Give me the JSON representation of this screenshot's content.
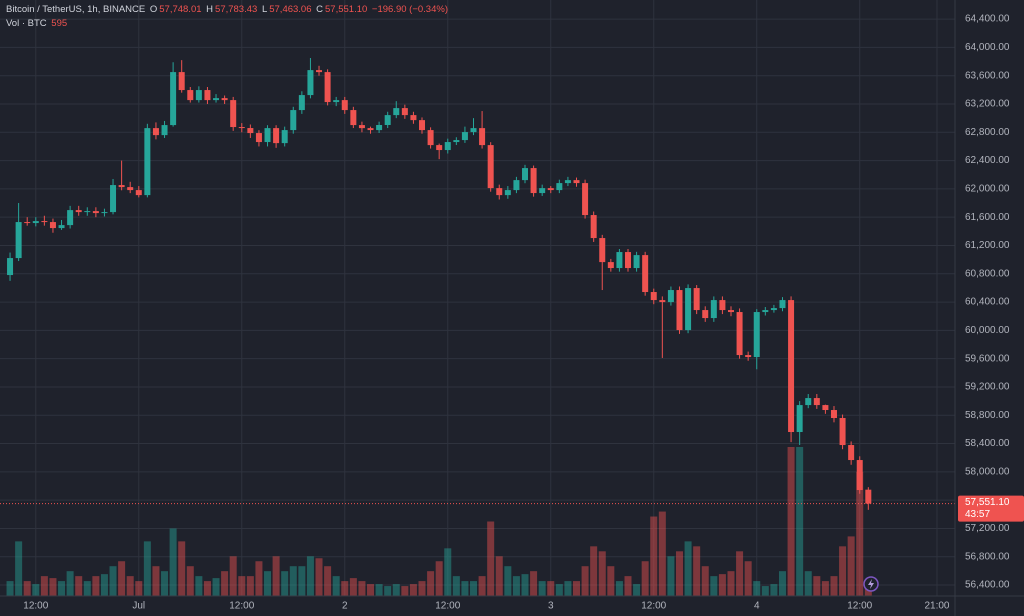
{
  "chart_data": {
    "type": "candlestick",
    "title": "Bitcoin / TetherUS, 1h, BINANCE",
    "ohlc_prefixes": [
      "O",
      "H",
      "L",
      "C"
    ],
    "ohlc_labels": [
      "57,748.01",
      "57,783.43",
      "57,463.06",
      "57,551.10"
    ],
    "change_label": "−196.90 (−0.34%)",
    "volume_title": "Vol · BTC",
    "volume_label": "595",
    "countdown": "43:57",
    "up_color": "#26a69a",
    "down_color": "#ef5350",
    "grid": true,
    "open": [
      60782,
      61022,
      61531,
      61517,
      61545,
      61531,
      61446,
      61488,
      61700,
      61672,
      61686,
      61658,
      61672,
      62054,
      62025,
      61983,
      61912,
      62859,
      62760,
      62902,
      63651,
      63397,
      63255,
      63397,
      63255,
      63283,
      63255,
      62874,
      62860,
      62789,
      62662,
      62859,
      62647,
      62831,
      63114,
      63326,
      63679,
      63651,
      63227,
      63255,
      63114,
      62902,
      62859,
      62831,
      62903,
      63043,
      63142,
      63043,
      62972,
      62831,
      62619,
      62549,
      62662,
      62690,
      62803,
      62859,
      62619,
      62011,
      61912,
      61983,
      62124,
      62294,
      61941,
      62011,
      61983,
      62082,
      62124,
      62082,
      61630,
      61305,
      60965,
      60881,
      61107,
      60881,
      61064,
      60542,
      60428,
      60400,
      60570,
      60004,
      60598,
      60287,
      60174,
      60428,
      60287,
      60259,
      59651,
      59623,
      60259,
      60287,
      60315,
      60428,
      58563,
      58944,
      59043,
      58944,
      58874,
      58761,
      58379,
      58167,
      57748.01
    ],
    "high": [
      61100,
      61800,
      61600,
      61600,
      61620,
      61580,
      61560,
      61760,
      61760,
      61740,
      61740,
      61720,
      62140,
      62400,
      62100,
      62040,
      62920,
      62940,
      62960,
      63790,
      63820,
      63440,
      63450,
      63440,
      63340,
      63320,
      63300,
      62930,
      62910,
      62830,
      62900,
      62900,
      62880,
      63160,
      63380,
      63850,
      63740,
      63690,
      63300,
      63300,
      63160,
      62950,
      62880,
      62950,
      63090,
      63240,
      63190,
      63090,
      63010,
      62870,
      62640,
      62710,
      62730,
      62880,
      63000,
      63100,
      62660,
      62060,
      62040,
      62170,
      62340,
      62330,
      62060,
      62040,
      62130,
      62170,
      62160,
      62130,
      61680,
      61350,
      61010,
      61150,
      61150,
      61110,
      61110,
      60590,
      60480,
      60620,
      60620,
      60650,
      60640,
      60340,
      60480,
      60480,
      60340,
      60310,
      59700,
      60300,
      60330,
      60360,
      60470,
      60480,
      59000,
      59100,
      59100,
      58950,
      58930,
      58810,
      58430,
      58220,
      57783.43
    ],
    "low": [
      60700,
      60980,
      61480,
      61470,
      61480,
      61380,
      61420,
      61440,
      61620,
      61620,
      61600,
      61610,
      61640,
      61980,
      61940,
      61880,
      61880,
      62700,
      62720,
      62880,
      63360,
      63220,
      63220,
      63200,
      63220,
      63200,
      62820,
      62800,
      62720,
      62600,
      62600,
      62580,
      62600,
      62780,
      63060,
      63280,
      63600,
      63180,
      63170,
      63060,
      62860,
      62800,
      62780,
      62790,
      62860,
      63000,
      62990,
      62920,
      62780,
      62570,
      62420,
      62500,
      62620,
      62650,
      62760,
      62570,
      61960,
      61850,
      61860,
      61940,
      62080,
      61890,
      61900,
      61940,
      61940,
      62040,
      62030,
      61580,
      61250,
      60570,
      60830,
      60830,
      60830,
      60830,
      60490,
      60370,
      59610,
      60350,
      59950,
      59960,
      60230,
      60120,
      60120,
      60230,
      60200,
      59600,
      59570,
      59450,
      60210,
      60250,
      60270,
      58420,
      58380,
      58900,
      58890,
      58820,
      58700,
      58320,
      58100,
      57690,
      57463.06
    ],
    "close": [
      61022,
      61531,
      61517,
      61545,
      61531,
      61446,
      61488,
      61700,
      61672,
      61686,
      61658,
      61672,
      62054,
      62025,
      61983,
      61912,
      62859,
      62760,
      62902,
      63651,
      63397,
      63255,
      63397,
      63255,
      63283,
      63255,
      62874,
      62860,
      62789,
      62662,
      62859,
      62647,
      62831,
      63114,
      63326,
      63679,
      63651,
      63227,
      63255,
      63114,
      62902,
      62859,
      62831,
      62903,
      63043,
      63142,
      63043,
      62972,
      62831,
      62619,
      62549,
      62662,
      62690,
      62803,
      62859,
      62619,
      62011,
      61912,
      61983,
      62124,
      62294,
      61941,
      62011,
      61983,
      62082,
      62124,
      62082,
      61630,
      61305,
      60965,
      60881,
      61107,
      60881,
      61064,
      60542,
      60428,
      60400,
      60570,
      60004,
      60598,
      60287,
      60174,
      60428,
      60287,
      60259,
      59651,
      59623,
      60259,
      60287,
      60315,
      60428,
      58563,
      58944,
      59043,
      58944,
      58874,
      58761,
      58379,
      58167,
      57743,
      57551.1
    ],
    "volume": [
      900,
      3300,
      900,
      720,
      1200,
      1080,
      900,
      1500,
      1200,
      900,
      1200,
      1320,
      1800,
      2100,
      1200,
      900,
      3300,
      1800,
      1500,
      4080,
      3300,
      1800,
      1200,
      900,
      1080,
      1500,
      2400,
      1200,
      1200,
      2100,
      1500,
      2400,
      1500,
      1800,
      1800,
      2400,
      2280,
      1800,
      1200,
      900,
      1080,
      900,
      720,
      720,
      600,
      720,
      600,
      720,
      900,
      1500,
      2100,
      2880,
      1200,
      900,
      900,
      1200,
      4500,
      2400,
      1800,
      1200,
      1320,
      1500,
      900,
      900,
      720,
      900,
      900,
      1800,
      3000,
      2700,
      1800,
      900,
      1200,
      720,
      2100,
      4800,
      5100,
      2400,
      2700,
      3300,
      3000,
      1800,
      1200,
      1320,
      1500,
      2700,
      2100,
      900,
      600,
      720,
      1500,
      9000,
      9000,
      1500,
      1200,
      900,
      1200,
      3000,
      3600,
      7500,
      595
    ],
    "xlim": [
      -1.17,
      110.1
    ],
    "xticks": [
      {
        "value": 3,
        "label": "12:00"
      },
      {
        "value": 15,
        "label": "Jul"
      },
      {
        "value": 27,
        "label": "12:00"
      },
      {
        "value": 39,
        "label": "2"
      },
      {
        "value": 51,
        "label": "12:00"
      },
      {
        "value": 63,
        "label": "3"
      },
      {
        "value": 75,
        "label": "12:00"
      },
      {
        "value": 87,
        "label": "4"
      },
      {
        "value": 99,
        "label": "12:00"
      },
      {
        "value": 108,
        "label": "21:00"
      }
    ],
    "ylim": [
      56245,
      64670
    ],
    "yticks": [
      {
        "value": 56400,
        "label": "56,400.00"
      },
      {
        "value": 56800,
        "label": "56,800.00"
      },
      {
        "value": 57200,
        "label": "57,200.00"
      },
      {
        "value": 57600,
        "label": "57,600.00"
      },
      {
        "value": 58000,
        "label": "58,000.00"
      },
      {
        "value": 58400,
        "label": "58,400.00"
      },
      {
        "value": 58800,
        "label": "58,800.00"
      },
      {
        "value": 59200,
        "label": "59,200.00"
      },
      {
        "value": 59600,
        "label": "59,600.00"
      },
      {
        "value": 60000,
        "label": "60,000.00"
      },
      {
        "value": 60400,
        "label": "60,400.00"
      },
      {
        "value": 60800,
        "label": "60,800.00"
      },
      {
        "value": 61200,
        "label": "61,200.00"
      },
      {
        "value": 61600,
        "label": "61,600.00"
      },
      {
        "value": 62000,
        "label": "62,000.00"
      },
      {
        "value": 62400,
        "label": "62,400.00"
      },
      {
        "value": 62800,
        "label": "62,800.00"
      },
      {
        "value": 63200,
        "label": "63,200.00"
      },
      {
        "value": 63600,
        "label": "63,600.00"
      },
      {
        "value": 64000,
        "label": "64,000.00"
      },
      {
        "value": 64400,
        "label": "64,400.00"
      }
    ],
    "y2lim": [
      0,
      36000
    ]
  }
}
